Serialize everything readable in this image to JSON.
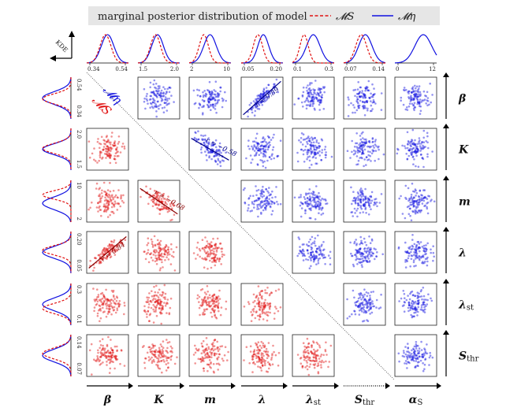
{
  "chart_data": {
    "type": "scatter",
    "title": "marginal posterior distribution of model",
    "legend": [
      {
        "label": "𝓜S",
        "color": "#e01010",
        "style": "dashed",
        "key": "S"
      },
      {
        "label": "𝓜η",
        "color": "#1010e0",
        "style": "solid",
        "key": "eta"
      }
    ],
    "kde_label": "KDE",
    "colors": {
      "S": "#e01010",
      "eta": "#1010e0",
      "fit": "#8b0000",
      "fit_eta": "#00008b"
    },
    "variables": [
      {
        "key": "beta",
        "label": "β",
        "sub": "",
        "range": [
          0.34,
          0.54
        ],
        "ticks": [
          "0.34",
          "0.54"
        ]
      },
      {
        "key": "K",
        "label": "K",
        "sub": "",
        "range": [
          1.5,
          2.0
        ],
        "ticks": [
          "1.5",
          "2.0"
        ]
      },
      {
        "key": "m",
        "label": "m",
        "sub": "",
        "range": [
          2,
          10
        ],
        "ticks": [
          "2",
          "10"
        ]
      },
      {
        "key": "lambda",
        "label": "λ",
        "sub": "",
        "range": [
          0.05,
          0.2
        ],
        "ticks": [
          "0.05",
          "0.20"
        ]
      },
      {
        "key": "lambda_st",
        "label": "λ",
        "sub": "st",
        "range": [
          0.1,
          0.3
        ],
        "ticks": [
          "0.1",
          "0.3"
        ]
      },
      {
        "key": "S_thr",
        "label": "S",
        "sub": "thr",
        "range": [
          0.07,
          0.14
        ],
        "ticks": [
          "0.07",
          "0.14"
        ]
      },
      {
        "key": "alpha_S",
        "label": "α",
        "sub": "S",
        "range": [
          0,
          12
        ],
        "ticks": [
          "0",
          "12"
        ]
      }
    ],
    "top_kde": {
      "eta": [
        {
          "mean": 0.5,
          "sd": 0.15
        },
        {
          "mean": 0.47,
          "sd": 0.14
        },
        {
          "mean": 0.5,
          "sd": 0.15
        },
        {
          "mean": 0.53,
          "sd": 0.13
        },
        {
          "mean": 0.5,
          "sd": 0.16
        },
        {
          "mean": 0.52,
          "sd": 0.16
        },
        {
          "mean": 0.68,
          "sd": 0.2
        }
      ],
      "S": [
        {
          "mean": 0.45,
          "sd": 0.13
        },
        {
          "mean": 0.42,
          "sd": 0.12
        },
        {
          "mean": 0.35,
          "sd": 0.11
        },
        {
          "mean": 0.4,
          "sd": 0.11
        },
        {
          "mean": 0.28,
          "sd": 0.1
        },
        {
          "mean": 0.42,
          "sd": 0.13
        },
        null
      ]
    },
    "left_kde": {
      "eta": [
        {
          "mean": 0.5,
          "sd": 0.15
        },
        {
          "mean": 0.5,
          "sd": 0.13
        },
        {
          "mean": 0.55,
          "sd": 0.15
        },
        {
          "mean": 0.5,
          "sd": 0.14
        },
        {
          "mean": 0.5,
          "sd": 0.15
        },
        {
          "mean": 0.5,
          "sd": 0.15
        }
      ],
      "S": [
        {
          "mean": 0.52,
          "sd": 0.12
        },
        {
          "mean": 0.48,
          "sd": 0.12
        },
        {
          "mean": 0.35,
          "sd": 0.1
        },
        {
          "mean": 0.45,
          "sd": 0.11
        },
        {
          "mean": 0.6,
          "sd": 0.12
        },
        {
          "mean": 0.45,
          "sd": 0.13
        }
      ]
    },
    "upper_triangle_model": "𝓜η",
    "lower_triangle_model": "𝓜S",
    "triangle_labels": {
      "upper": "𝓜η",
      "lower": "𝓜S"
    },
    "correlations": [
      {
        "model": "eta",
        "pair": [
          "beta",
          "lambda"
        ],
        "r_label": "r ≈ 0.89",
        "r": 0.89
      },
      {
        "model": "eta",
        "pair": [
          "K",
          "m"
        ],
        "r_label": "r ≈ −0.58",
        "r": -0.58
      },
      {
        "model": "S",
        "pair": [
          "K",
          "m"
        ],
        "r_label": "r ≈ −0.68",
        "r": -0.68
      },
      {
        "model": "S",
        "pair": [
          "beta",
          "lambda"
        ],
        "r_label": "r ≈ 0.84",
        "r": 0.84
      }
    ]
  }
}
